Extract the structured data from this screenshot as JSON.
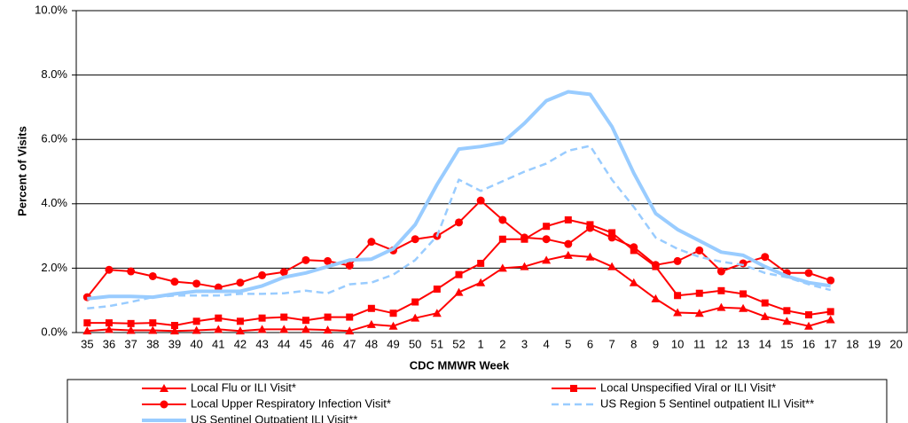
{
  "chart_data": {
    "type": "line",
    "y_label": "Percent of Visits",
    "x_label": "CDC MMWR Week",
    "categories": [
      "35",
      "36",
      "37",
      "38",
      "39",
      "40",
      "41",
      "42",
      "43",
      "44",
      "45",
      "46",
      "47",
      "48",
      "49",
      "50",
      "51",
      "52",
      "1",
      "2",
      "3",
      "4",
      "5",
      "6",
      "7",
      "8",
      "9",
      "10",
      "11",
      "12",
      "13",
      "14",
      "15",
      "16",
      "17",
      "18",
      "19",
      "20"
    ],
    "ylim": [
      0,
      10
    ],
    "yticks": [
      {
        "value": 0,
        "label": "0.0%"
      },
      {
        "value": 2,
        "label": "2.0%"
      },
      {
        "value": 4,
        "label": "4.0%"
      },
      {
        "value": 6,
        "label": "6.0%"
      },
      {
        "value": 8,
        "label": "8.0%"
      },
      {
        "value": 10,
        "label": "10.0%"
      }
    ],
    "grid": true,
    "series": [
      {
        "name": "Local Flu or ILI Visit*",
        "color": "#ff0000",
        "marker": "triangle",
        "dash": false,
        "width": 2,
        "values": [
          0.05,
          0.1,
          0.07,
          0.07,
          0.05,
          0.07,
          0.1,
          0.05,
          0.1,
          0.1,
          0.1,
          0.08,
          0.05,
          0.25,
          0.2,
          0.45,
          0.6,
          1.25,
          1.55,
          2.0,
          2.05,
          2.25,
          2.4,
          2.35,
          2.05,
          1.55,
          1.05,
          0.62,
          0.6,
          0.78,
          0.75,
          0.5,
          0.35,
          0.2,
          0.4,
          null,
          null,
          null
        ]
      },
      {
        "name": "Local Unspecified Viral or ILI Visit*",
        "color": "#ff0000",
        "marker": "square",
        "dash": false,
        "width": 2,
        "values": [
          0.3,
          0.3,
          0.28,
          0.3,
          0.22,
          0.35,
          0.45,
          0.35,
          0.45,
          0.48,
          0.38,
          0.48,
          0.48,
          0.75,
          0.6,
          0.95,
          1.35,
          1.8,
          2.15,
          2.9,
          2.9,
          3.3,
          3.5,
          3.35,
          3.1,
          2.55,
          2.05,
          1.15,
          1.22,
          1.3,
          1.2,
          0.92,
          0.68,
          0.55,
          0.65,
          null,
          null,
          null
        ]
      },
      {
        "name": "Local Upper Respiratory Infection Visit*",
        "color": "#ff0000",
        "marker": "circle",
        "dash": false,
        "width": 2,
        "values": [
          1.1,
          1.95,
          1.9,
          1.75,
          1.58,
          1.52,
          1.4,
          1.55,
          1.78,
          1.88,
          2.25,
          2.22,
          2.08,
          2.82,
          2.55,
          2.9,
          3.0,
          3.42,
          4.1,
          3.5,
          2.95,
          2.9,
          2.75,
          3.25,
          2.95,
          2.65,
          2.1,
          2.22,
          2.55,
          1.9,
          2.15,
          2.35,
          1.85,
          1.85,
          1.62,
          null,
          null,
          null
        ]
      },
      {
        "name": "US Region 5 Sentinel outpatient ILI Visit**",
        "color": "#99ccff",
        "marker": "none",
        "dash": true,
        "width": 2.5,
        "values": [
          0.75,
          0.82,
          0.95,
          1.1,
          1.15,
          1.15,
          1.15,
          1.2,
          1.2,
          1.22,
          1.3,
          1.22,
          1.5,
          1.55,
          1.8,
          2.25,
          3.0,
          4.75,
          4.4,
          4.7,
          5.0,
          5.25,
          5.65,
          5.8,
          4.75,
          3.9,
          2.95,
          2.6,
          2.35,
          2.2,
          2.1,
          1.85,
          1.72,
          1.5,
          1.32,
          null,
          null,
          null
        ]
      },
      {
        "name": "US Sentinel Outpatient ILI Visit**",
        "color": "#99ccff",
        "marker": "none",
        "dash": false,
        "width": 4,
        "values": [
          1.05,
          1.12,
          1.12,
          1.1,
          1.2,
          1.28,
          1.28,
          1.28,
          1.45,
          1.72,
          1.85,
          2.05,
          2.25,
          2.28,
          2.6,
          3.35,
          4.6,
          5.7,
          5.78,
          5.9,
          6.5,
          7.2,
          7.48,
          7.4,
          6.4,
          4.95,
          3.7,
          3.2,
          2.85,
          2.5,
          2.4,
          2.05,
          1.75,
          1.55,
          1.45,
          null,
          null,
          null
        ]
      }
    ]
  }
}
